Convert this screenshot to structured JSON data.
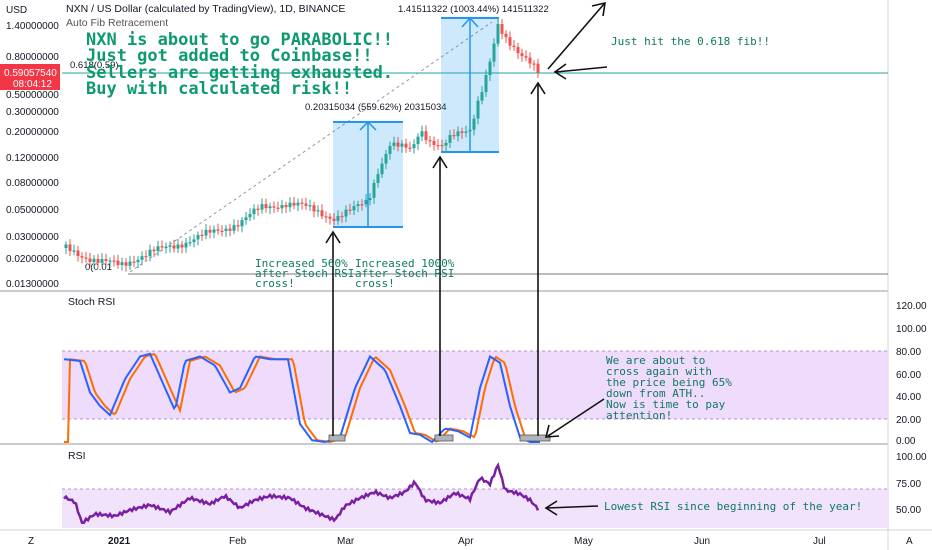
{
  "header": {
    "symbol_line": "NXN / US Dollar (calculated by TradingView), 1D, BINANCE",
    "fib_label": "Auto Fib Retracement",
    "currency": "USD"
  },
  "price_axis": {
    "ticks": [
      "1.40000000",
      "0.80000000",
      "0.50000000",
      "0.30000000",
      "0.20000000",
      "0.12000000",
      "0.08000000",
      "0.05000000",
      "0.03000000",
      "0.02000000",
      "0.01300000"
    ],
    "current_price": "0.59057540",
    "countdown": "08:04:12",
    "accent": "#f23645"
  },
  "stoch_axis": {
    "ticks": [
      "120.00",
      "100.00",
      "80.00",
      "60.00",
      "40.00",
      "20.00",
      "0.00"
    ]
  },
  "rsi_axis": {
    "ticks": [
      "100.00",
      "75.00",
      "50.00"
    ]
  },
  "time_axis": {
    "ticks": [
      "2021",
      "Feb",
      "Mar",
      "Apr",
      "May",
      "Jun",
      "Jul"
    ]
  },
  "corner_icons": {
    "left": "Z",
    "right": "A"
  },
  "panes": {
    "stoch_label": "Stoch RSI",
    "rsi_label": "RSI"
  },
  "fib": {
    "level_label": "0.618(0.59)",
    "low_label": "0(0.01"
  },
  "annotations": {
    "headline": [
      "NXN is about to go PARABOLIC!!",
      " Just got added to Coinbase!!",
      " Sellers are getting exhausted.",
      " Buy with calculated risk!!"
    ],
    "fib_hit": "Just hit the 0.618 fib!!",
    "increase_560": [
      "Increased 560%",
      "after Stoch RSI",
      "cross!"
    ],
    "increase_1000": [
      "Increased 1000%",
      "after Stoch RSI",
      "cross!"
    ],
    "cross_note": [
      "We are about to",
      "cross again with",
      "the price being 65%",
      "down from ATH..",
      "Now is time to pay",
      "attention!"
    ],
    "rsi_note": "Lowest RSI since beginning of the year!",
    "box1_label": "0.20315034 (559.62%) 20315034",
    "box2_label": "1.41511322 (1003.44%) 141511322"
  },
  "colors": {
    "up": "#26a69a",
    "down": "#ef5350",
    "stoch_k": "#2962ff",
    "stoch_d": "#ff6d00",
    "rsi": "#7b1fa2",
    "box": "#2196f3",
    "band": "#e6ccff"
  }
}
